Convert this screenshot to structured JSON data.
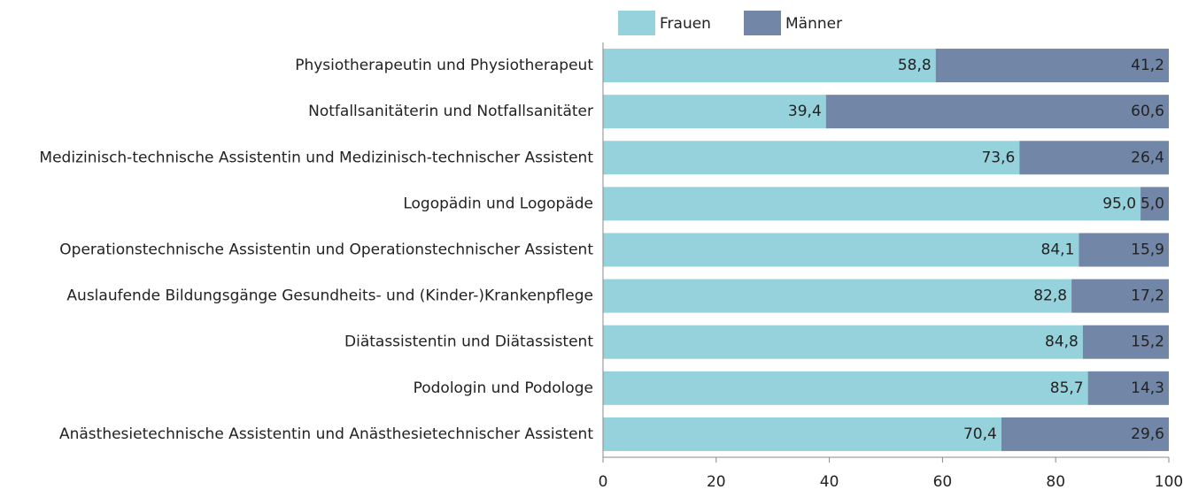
{
  "chart_data": {
    "type": "stacked_barh",
    "categories": [
      "Physiotherapeutin und Physiotherapeut",
      "Notfallsanitäterin und Notfallsanitäter",
      "Medizinisch-technische Assistentin und Medizinisch-technischer Assistent",
      "Logopädin und Logopäde",
      "Operationstechnische Assistentin und Operationstechnischer Assistent",
      "Auslaufende Bildungsgänge Gesundheits- und (Kinder-)Krankenpflege",
      "Diätassistentin und Diätassistent",
      "Podologin und Podologe",
      "Anästhesietechnische Assistentin und Anästhesietechnischer Assistent"
    ],
    "series": [
      {
        "name": "Frauen",
        "color": "#96d2dc",
        "values": [
          58.8,
          39.4,
          73.6,
          95.0,
          84.1,
          82.8,
          84.8,
          85.7,
          70.4
        ],
        "value_labels": [
          "58,8",
          "39,4",
          "73,6",
          "95,0",
          "84,1",
          "82,8",
          "84,8",
          "85,7",
          "70,4"
        ]
      },
      {
        "name": "Männer",
        "color": "#7287a7",
        "values": [
          41.2,
          60.6,
          26.4,
          5.0,
          15.9,
          17.2,
          15.2,
          14.3,
          29.6
        ],
        "value_labels": [
          "41,2",
          "60,6",
          "26,4",
          "5,0",
          "15,9",
          "17,2",
          "15,2",
          "14,3",
          "29,6"
        ]
      }
    ],
    "xlim": [
      0,
      100
    ],
    "xticks": [
      0,
      20,
      40,
      60,
      80,
      100
    ],
    "legend": "top"
  }
}
